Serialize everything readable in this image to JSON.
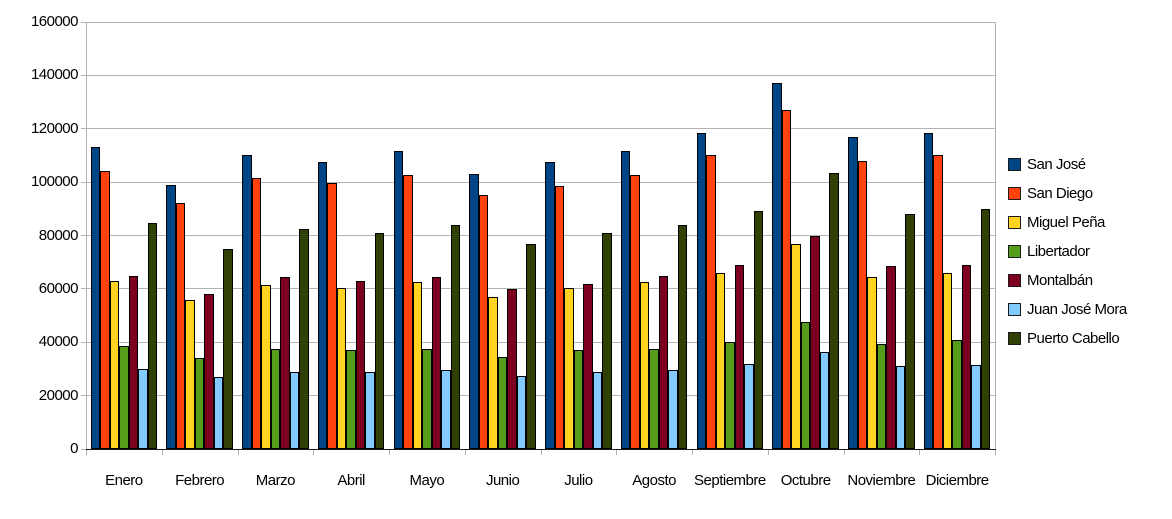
{
  "chart_data": {
    "type": "bar",
    "categories": [
      "Enero",
      "Febrero",
      "Marzo",
      "Abril",
      "Mayo",
      "Junio",
      "Julio",
      "Agosto",
      "Septiembre",
      "Octubre",
      "Noviembre",
      "Diciembre"
    ],
    "series": [
      {
        "name": "San José",
        "color": "#004586",
        "values": [
          113000,
          99000,
          110000,
          107500,
          111500,
          103000,
          107500,
          111500,
          118500,
          137000,
          117000,
          118500
        ]
      },
      {
        "name": "San Diego",
        "color": "#FF420E",
        "values": [
          104000,
          92000,
          101500,
          99500,
          102500,
          95000,
          98500,
          102500,
          110000,
          127000,
          108000,
          110000
        ]
      },
      {
        "name": "Miguel Peña",
        "color": "#FFD320",
        "values": [
          63000,
          56000,
          61500,
          60500,
          62500,
          57000,
          60500,
          62500,
          66000,
          77000,
          64500,
          66000
        ]
      },
      {
        "name": "Libertador",
        "color": "#579D1C",
        "values": [
          38500,
          34000,
          37500,
          37000,
          37500,
          34500,
          37000,
          37500,
          40000,
          47500,
          39500,
          41000
        ]
      },
      {
        "name": "Montalbán",
        "color": "#7E0021",
        "values": [
          65000,
          58000,
          64500,
          63000,
          64500,
          60000,
          62000,
          65000,
          69000,
          80000,
          68500,
          69000
        ]
      },
      {
        "name": "Juan José Mora",
        "color": "#83CAFF",
        "values": [
          30000,
          27000,
          29000,
          29000,
          29500,
          27500,
          29000,
          29500,
          32000,
          36500,
          31000,
          31500
        ]
      },
      {
        "name": "Puerto Cabello",
        "color": "#314004",
        "values": [
          84500,
          75000,
          82500,
          81000,
          84000,
          77000,
          81000,
          84000,
          89000,
          103500,
          88000,
          90000
        ]
      }
    ],
    "ylim": [
      0,
      160000
    ],
    "y_tick_step": 20000,
    "y_tick_labels": [
      "0",
      "20000",
      "40000",
      "60000",
      "80000",
      "100000",
      "120000",
      "140000",
      "160000"
    ],
    "grid": true,
    "legend_position": "right",
    "colors": {
      "gridline": "#b3b3b3",
      "x_axis": "#1a1a1a",
      "bar_border": "#000000",
      "background": "#ffffff"
    }
  }
}
